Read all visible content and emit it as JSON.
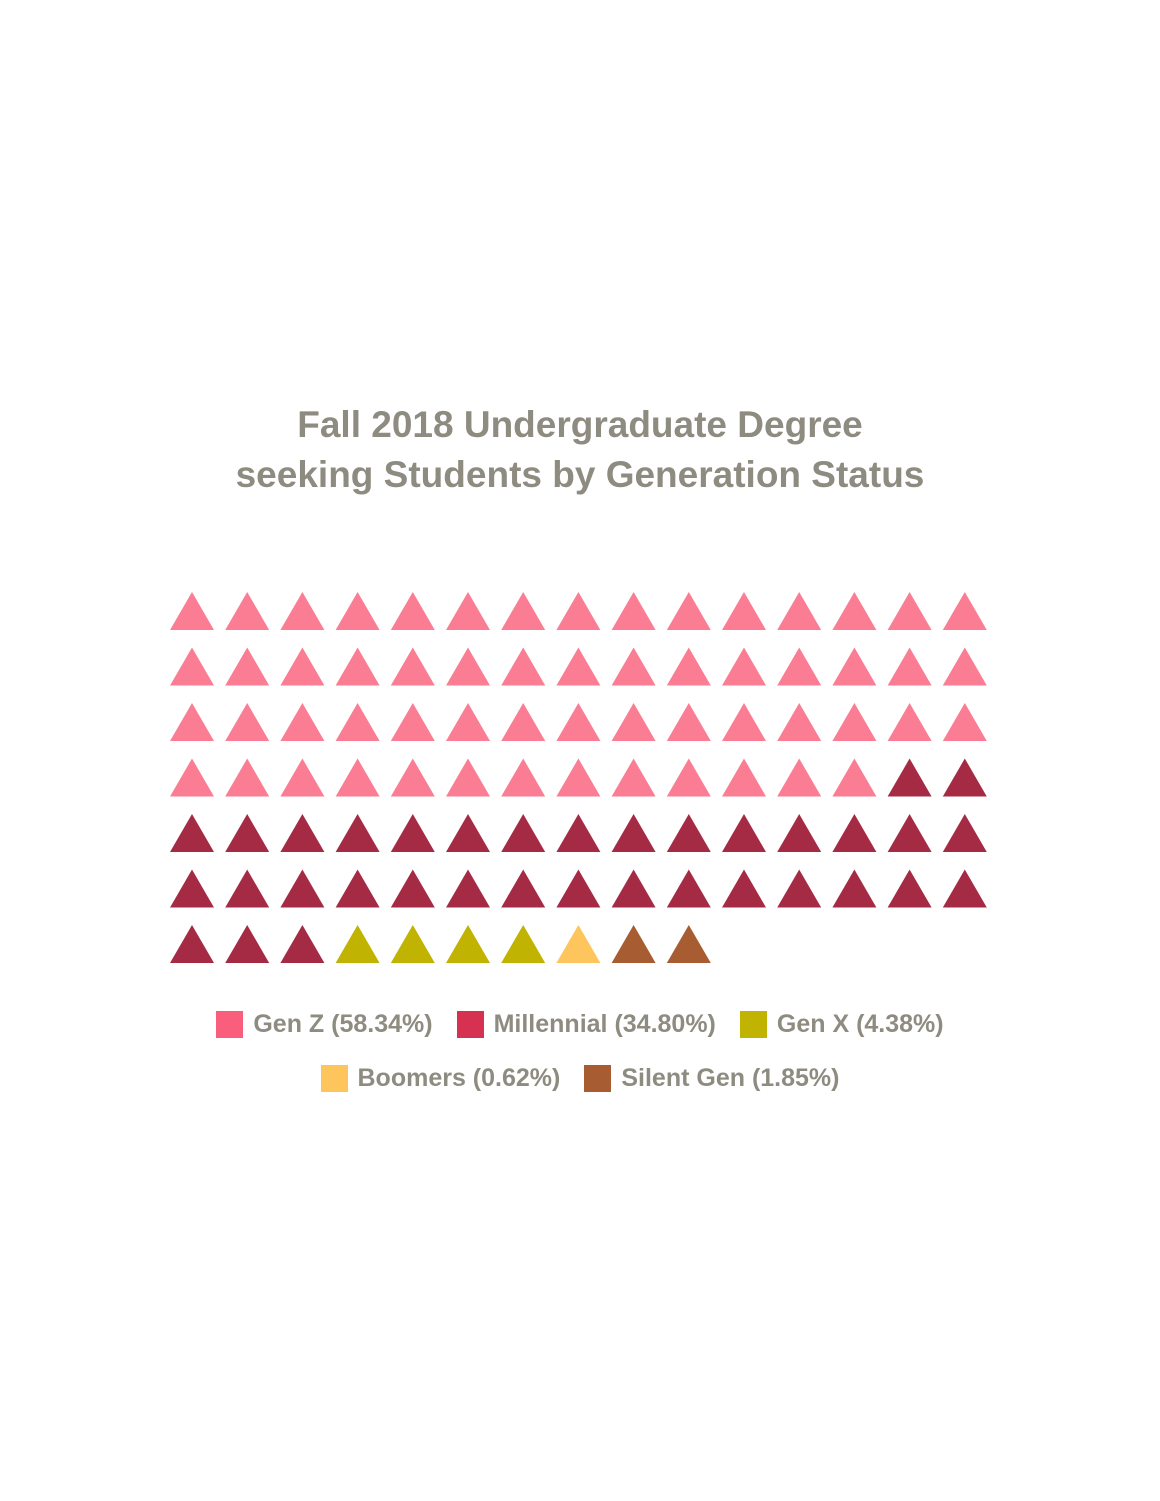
{
  "chart_data": {
    "type": "waffle",
    "marker_shape": "triangle",
    "title": [
      "Fall 2018 Undergraduate Degree",
      "seeking Students by Generation Status"
    ],
    "grid": false,
    "columns": 15,
    "legend_placement": "bottom",
    "series": [
      {
        "name": "Gen Z",
        "label": "Gen Z (58.34%)",
        "percent": 58.34,
        "count": 58,
        "marker_color": "#fb7d93",
        "legend_color": "#fa5e7d"
      },
      {
        "name": "Millennial",
        "label": "Millennial (34.80%)",
        "percent": 34.8,
        "count": 35,
        "marker_color": "#a52b45",
        "legend_color": "#d63150"
      },
      {
        "name": "Gen X",
        "label": "Gen X (4.38%)",
        "percent": 4.38,
        "count": 4,
        "marker_color": "#c0b301",
        "legend_color": "#c0b301"
      },
      {
        "name": "Boomers",
        "label": "Boomers (0.62%)",
        "percent": 0.62,
        "count": 1,
        "marker_color": "#fdc55c",
        "legend_color": "#fdc55c"
      },
      {
        "name": "Silent Gen",
        "label": "Silent Gen (1.85%)",
        "percent": 1.85,
        "count": 2,
        "marker_color": "#a85c32",
        "legend_color": "#a85c32"
      }
    ]
  }
}
